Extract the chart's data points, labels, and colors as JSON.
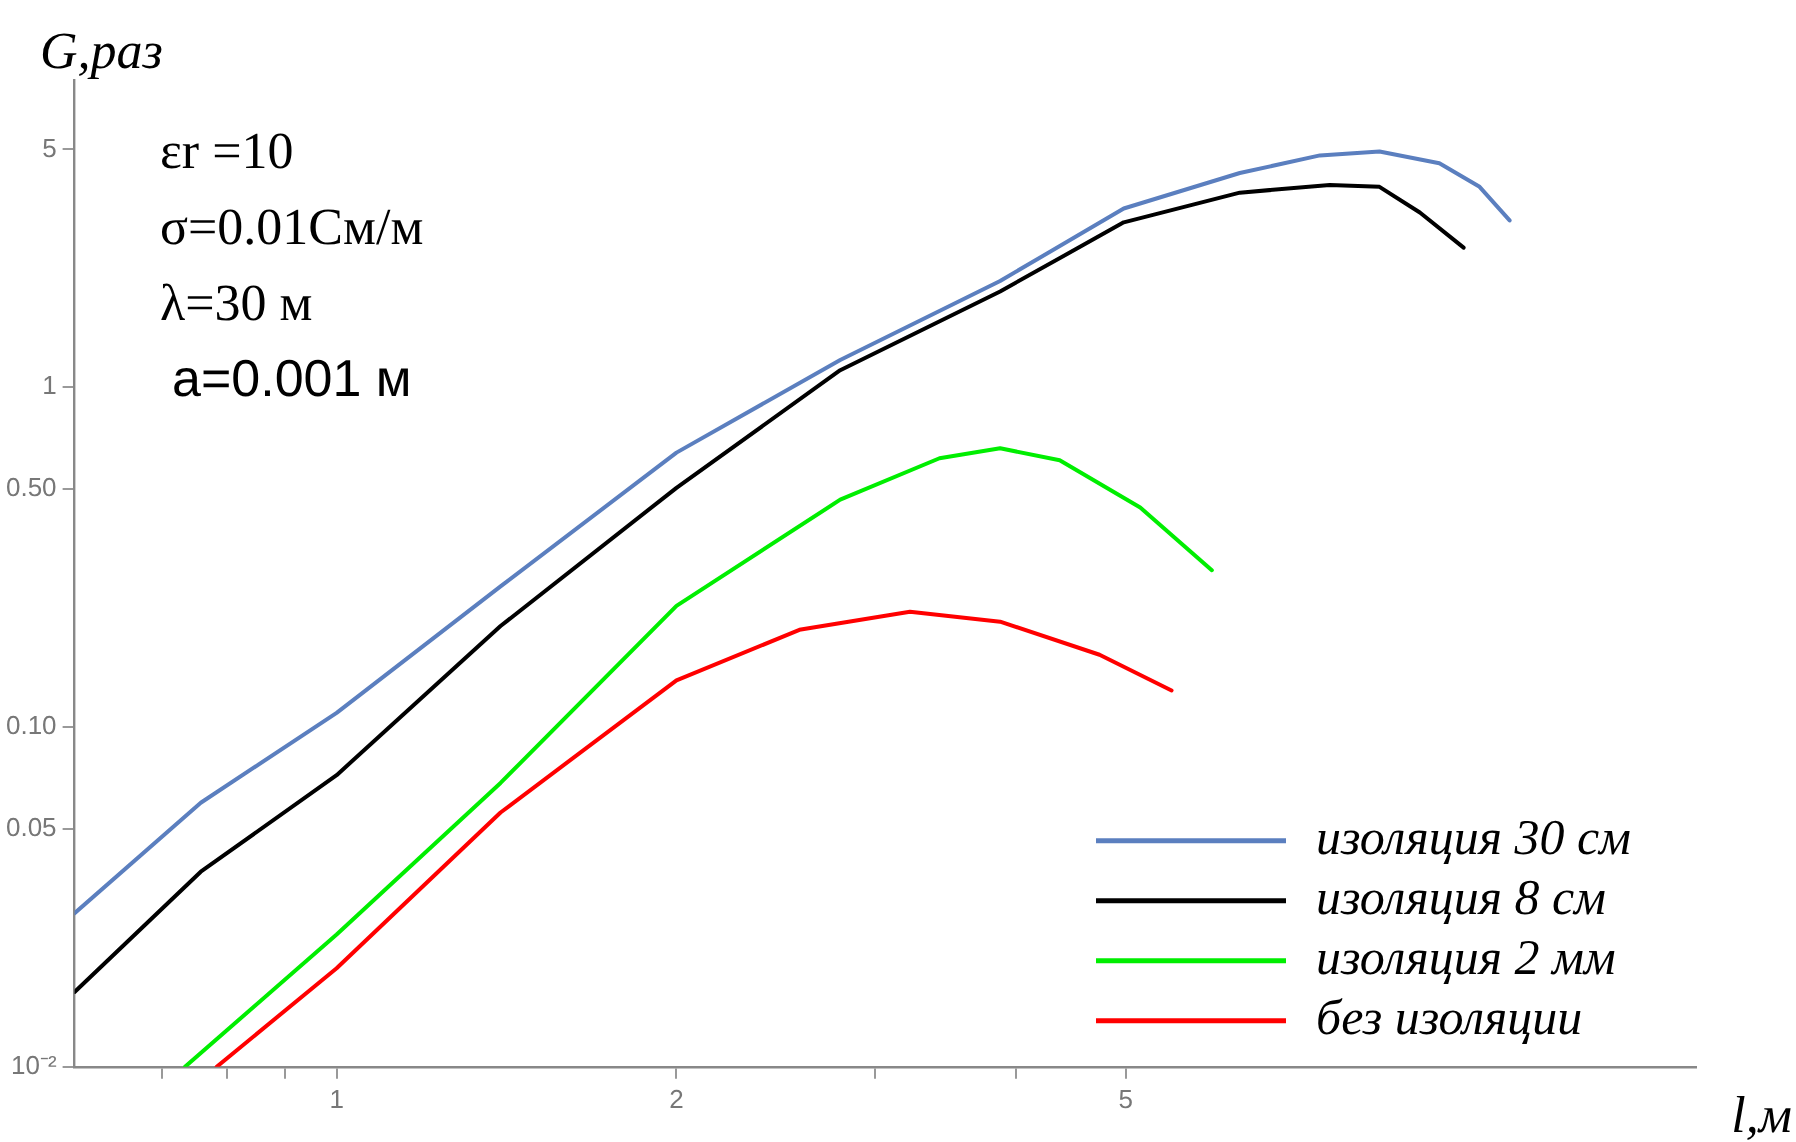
{
  "chart_data": {
    "type": "line",
    "xlabel": "l,м",
    "ylabel": "G,раз",
    "log": "xy",
    "grid": false,
    "legend": "bottom right",
    "marker": "none",
    "line_style": "solid",
    "xlim": [
      0.586,
      16
    ],
    "ylim": [
      0.01,
      8
    ],
    "xticks": [
      {
        "value": 0.7,
        "label": null
      },
      {
        "value": 0.8,
        "label": null
      },
      {
        "value": 0.9,
        "label": null
      },
      1,
      2,
      {
        "value": 3,
        "label": null
      },
      {
        "value": 4,
        "label": null
      },
      5
    ],
    "yticks": [
      {
        "value": 0.01,
        "label": "10⁻²"
      },
      0.05,
      {
        "value": 0.1,
        "label": "0.10"
      },
      {
        "value": 0.5,
        "label": "0.50"
      },
      1,
      5
    ],
    "annotations": [
      "εr =10",
      "σ=0.01См/м",
      "λ=30 м",
      "a=0.001 м"
    ],
    "series": [
      {
        "name": "изоляция 30 см",
        "color": "#5b7fbf",
        "x": [
          0.586,
          0.758,
          1,
          1.397,
          2.0,
          2.793,
          3.87,
          4.98,
          6.31,
          7.43,
          8.39,
          9.48,
          10.29,
          10.94
        ],
        "values": [
          0.0283,
          0.0598,
          0.11,
          0.259,
          0.641,
          1.2,
          2.05,
          3.35,
          4.26,
          4.8,
          4.93,
          4.55,
          3.88,
          3.09
        ]
      },
      {
        "name": "изоляция 8 см",
        "color": "#000000",
        "x": [
          0.586,
          0.758,
          1,
          1.397,
          2.0,
          2.793,
          3.87,
          4.98,
          6.31,
          7.58,
          8.39,
          9.11,
          9.96
        ],
        "values": [
          0.0166,
          0.0375,
          0.0721,
          0.198,
          0.505,
          1.12,
          1.91,
          3.05,
          3.73,
          3.93,
          3.88,
          3.26,
          2.57
        ]
      },
      {
        "name": "изоляция 2 мм",
        "color": "#00ee00",
        "x": [
          0.734,
          1,
          1.397,
          2.0,
          2.793,
          3.42,
          3.87,
          4.37,
          5.15,
          5.96
        ],
        "values": [
          0.01,
          0.0245,
          0.0684,
          0.227,
          0.466,
          0.617,
          0.66,
          0.609,
          0.442,
          0.289
        ]
      },
      {
        "name": "без изоляции",
        "color": "#ff0000",
        "x": [
          0.783,
          1,
          1.397,
          2.0,
          2.57,
          3.22,
          3.87,
          4.74,
          5.49
        ],
        "values": [
          0.01,
          0.0195,
          0.056,
          0.137,
          0.193,
          0.218,
          0.204,
          0.163,
          0.128
        ]
      }
    ]
  }
}
